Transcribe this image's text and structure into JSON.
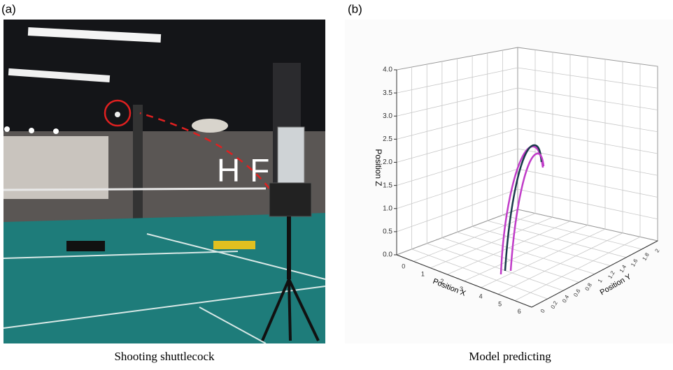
{
  "panels": [
    {
      "label": "(a)",
      "caption": "Shooting shuttlecock"
    },
    {
      "label": "(b)",
      "caption": "Model predicting",
      "plot": {
        "z_axis_title": "Position Z",
        "x_axis_title": "Position X",
        "y_axis_title": "Position Y",
        "z_ticks": [
          "0.0",
          "0.5",
          "1.0",
          "1.5",
          "2.0",
          "2.5",
          "3.0",
          "3.5",
          "4.0"
        ],
        "x_ticks": [
          "0",
          "1",
          "2",
          "3",
          "4",
          "5",
          "6"
        ],
        "y_ticks": [
          "0",
          "0.2",
          "0.4",
          "0.6",
          "0.8",
          "1",
          "1.2",
          "1.4",
          "1.6",
          "1.8",
          "2"
        ]
      }
    }
  ]
}
